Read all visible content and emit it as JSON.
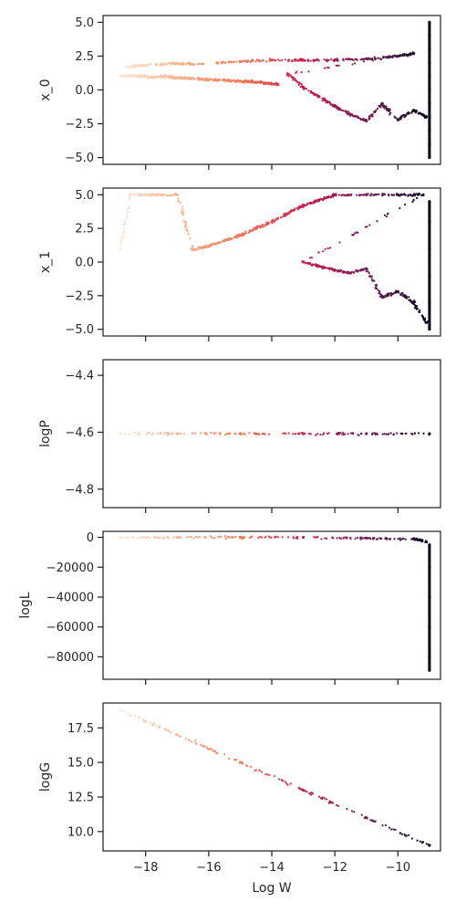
{
  "chart_data": [
    {
      "type": "scatter",
      "title": "",
      "xlabel": "",
      "ylabel": "x_0",
      "xlim": [
        -19.35,
        -8.65
      ],
      "ylim": [
        -5.5,
        5.5
      ],
      "xticks": [
        -18,
        -16,
        -14,
        -12,
        -10
      ],
      "show_xtick_labels": false,
      "yticks": [
        5.0,
        2.5,
        0.0,
        -2.5,
        -5.0
      ],
      "ytick_labels": [
        "5.0",
        "2.5",
        "0.0",
        "−2.5",
        "−5.0"
      ],
      "grid": false,
      "legend": "none",
      "colormap": "rocket (light = low log W, dark = high log W)",
      "series": [
        {
          "points": [
            [
              -18.8,
              1.0
            ],
            [
              -18.5,
              1.05
            ],
            [
              -18.2,
              1.0
            ],
            [
              -17.8,
              0.95
            ],
            [
              -17.4,
              1.0
            ],
            [
              -17.0,
              0.9
            ],
            [
              -16.6,
              0.85
            ],
            [
              -16.2,
              0.8
            ],
            [
              -15.8,
              0.75
            ],
            [
              -15.4,
              0.7
            ],
            [
              -15.0,
              0.65
            ],
            [
              -14.6,
              0.6
            ],
            [
              -14.2,
              0.5
            ],
            [
              -13.8,
              0.4
            ],
            [
              -18.6,
              1.7
            ],
            [
              -18.2,
              1.8
            ],
            [
              -17.5,
              1.9
            ],
            [
              -17.0,
              1.95
            ],
            [
              -16.5,
              1.9
            ],
            [
              -15.0,
              2.1
            ],
            [
              -14.0,
              2.2
            ],
            [
              -13.0,
              2.2
            ],
            [
              -12.0,
              2.2
            ],
            [
              -11.0,
              2.3
            ],
            [
              -10.0,
              2.5
            ],
            [
              -9.5,
              2.7
            ],
            [
              -13.5,
              1.2
            ],
            [
              -13.0,
              0.2
            ],
            [
              -12.5,
              -0.5
            ],
            [
              -12.0,
              -1.2
            ],
            [
              -11.5,
              -1.8
            ],
            [
              -11.0,
              -2.3
            ],
            [
              -10.5,
              -1.0
            ],
            [
              -10.0,
              -2.2
            ],
            [
              -9.5,
              -1.5
            ],
            [
              -9.1,
              -2.0
            ]
          ]
        },
        {
          "points": [
            [
              -9.0,
              -5.0
            ],
            [
              -9.0,
              -4.0
            ],
            [
              -9.0,
              -3.0
            ],
            [
              -9.0,
              -2.0
            ],
            [
              -9.0,
              -1.0
            ],
            [
              -9.0,
              0.0
            ],
            [
              -9.0,
              1.0
            ],
            [
              -9.0,
              2.0
            ],
            [
              -9.0,
              3.0
            ],
            [
              -9.0,
              4.0
            ],
            [
              -9.0,
              5.0
            ]
          ]
        }
      ]
    },
    {
      "type": "scatter",
      "title": "",
      "xlabel": "",
      "ylabel": "x_1",
      "xlim": [
        -19.35,
        -8.65
      ],
      "ylim": [
        -5.5,
        5.5
      ],
      "xticks": [
        -18,
        -16,
        -14,
        -12,
        -10
      ],
      "show_xtick_labels": false,
      "yticks": [
        5.0,
        2.5,
        0.0,
        -2.5,
        -5.0
      ],
      "ytick_labels": [
        "5.0",
        "2.5",
        "0.0",
        "−2.5",
        "−5.0"
      ],
      "grid": false,
      "legend": "none",
      "colormap": "rocket (light = low log W, dark = high log W)",
      "series": [
        {
          "points": [
            [
              -18.8,
              1.0
            ],
            [
              -18.5,
              5.0
            ],
            [
              -18.0,
              5.0
            ],
            [
              -17.5,
              5.0
            ],
            [
              -17.0,
              5.0
            ],
            [
              -16.5,
              0.9
            ],
            [
              -16.0,
              1.2
            ],
            [
              -15.5,
              1.6
            ],
            [
              -15.0,
              2.0
            ],
            [
              -14.5,
              2.5
            ],
            [
              -14.0,
              3.0
            ],
            [
              -13.5,
              3.6
            ],
            [
              -13.0,
              4.2
            ],
            [
              -12.5,
              4.6
            ],
            [
              -12.0,
              5.0
            ],
            [
              -11.0,
              5.0
            ],
            [
              -10.0,
              5.0
            ],
            [
              -9.2,
              5.0
            ],
            [
              -13.0,
              0.0
            ],
            [
              -12.5,
              -0.3
            ],
            [
              -12.0,
              -0.6
            ],
            [
              -11.5,
              -0.8
            ],
            [
              -11.0,
              -0.5
            ],
            [
              -10.5,
              -2.6
            ],
            [
              -10.0,
              -2.2
            ],
            [
              -9.5,
              -3.0
            ],
            [
              -9.1,
              -4.5
            ]
          ]
        },
        {
          "points": [
            [
              -9.0,
              -5.0
            ],
            [
              -9.0,
              -3.0
            ],
            [
              -9.0,
              -1.0
            ],
            [
              -9.0,
              1.0
            ],
            [
              -9.0,
              3.0
            ],
            [
              -9.0,
              4.5
            ]
          ]
        }
      ]
    },
    {
      "type": "scatter",
      "title": "",
      "xlabel": "",
      "ylabel": "logP",
      "xlim": [
        -19.35,
        -8.65
      ],
      "ylim": [
        -4.865,
        -4.345
      ],
      "xticks": [
        -18,
        -16,
        -14,
        -12,
        -10
      ],
      "show_xtick_labels": false,
      "yticks": [
        -4.4,
        -4.6,
        -4.8
      ],
      "ytick_labels": [
        "−4.4",
        "−4.6",
        "−4.8"
      ],
      "grid": false,
      "legend": "none",
      "colormap": "rocket (light = low log W, dark = high log W)",
      "series": [
        {
          "points": [
            [
              -18.8,
              -4.605
            ],
            [
              -17.0,
              -4.605
            ],
            [
              -15.0,
              -4.605
            ],
            [
              -13.0,
              -4.605
            ],
            [
              -11.0,
              -4.605
            ],
            [
              -9.0,
              -4.605
            ]
          ]
        }
      ]
    },
    {
      "type": "scatter",
      "title": "",
      "xlabel": "",
      "ylabel": "logL",
      "xlim": [
        -19.35,
        -8.65
      ],
      "ylim": [
        -95000,
        4000
      ],
      "xticks": [
        -18,
        -16,
        -14,
        -12,
        -10
      ],
      "show_xtick_labels": false,
      "yticks": [
        0,
        -20000,
        -40000,
        -60000,
        -80000
      ],
      "ytick_labels": [
        "0",
        "−20000",
        "−40000",
        "−60000",
        "−80000"
      ],
      "grid": false,
      "legend": "none",
      "colormap": "rocket (light = low log W, dark = high log W)",
      "series": [
        {
          "points": [
            [
              -18.8,
              0
            ],
            [
              -17.0,
              0
            ],
            [
              -15.0,
              0
            ],
            [
              -13.0,
              0
            ],
            [
              -11.0,
              -500
            ],
            [
              -9.5,
              -1000
            ],
            [
              -9.1,
              -3000
            ]
          ]
        },
        {
          "points": [
            [
              -9.0,
              -5000
            ],
            [
              -9.0,
              -20000
            ],
            [
              -9.0,
              -40000
            ],
            [
              -9.0,
              -60000
            ],
            [
              -9.0,
              -80000
            ],
            [
              -9.0,
              -89000
            ]
          ]
        }
      ]
    },
    {
      "type": "scatter",
      "title": "",
      "xlabel": "Log W",
      "ylabel": "logG",
      "xlim": [
        -19.35,
        -8.65
      ],
      "ylim": [
        8.6,
        19.3
      ],
      "xticks": [
        -18,
        -16,
        -14,
        -12,
        -10
      ],
      "show_xtick_labels": true,
      "xtick_labels": [
        "−18",
        "−16",
        "−14",
        "−12",
        "−10"
      ],
      "yticks": [
        17.5,
        15.0,
        12.5,
        10.0
      ],
      "ytick_labels": [
        "17.5",
        "15.0",
        "12.5",
        "10.0"
      ],
      "grid": false,
      "legend": "none",
      "colormap": "rocket (light = low log W, dark = high log W)",
      "series": [
        {
          "points": [
            [
              -18.8,
              18.8
            ],
            [
              -17.0,
              17.0
            ],
            [
              -15.0,
              15.0
            ],
            [
              -13.0,
              13.0
            ],
            [
              -11.0,
              11.0
            ],
            [
              -9.0,
              9.0
            ]
          ]
        }
      ]
    }
  ]
}
